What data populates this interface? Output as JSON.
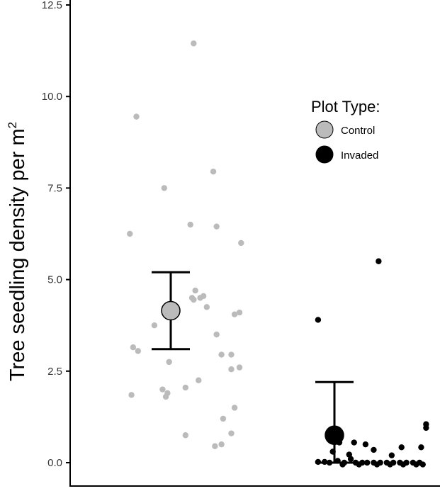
{
  "chart_data": {
    "type": "scatter",
    "ylabel": "Tree seedling density per m",
    "ylabel_sup": "2",
    "ylim": [
      0,
      12.5
    ],
    "yticks": [
      "0.0",
      "2.5",
      "5.0",
      "7.5",
      "10.0",
      "12.5"
    ],
    "grid": false,
    "legend": {
      "title": "Plot Type:",
      "placement": "top-right",
      "entries": [
        {
          "label": "Control",
          "color": "#bbbbbb"
        },
        {
          "label": "Invaded",
          "color": "#000000"
        }
      ]
    },
    "series": [
      {
        "name": "Control",
        "color": "#bbbbbb",
        "mean": 4.15,
        "error_low": 3.1,
        "error_high": 5.2,
        "points": [
          {
            "x": 1.14,
            "y": 11.45
          },
          {
            "x": 0.79,
            "y": 9.45
          },
          {
            "x": 1.26,
            "y": 7.95
          },
          {
            "x": 0.96,
            "y": 7.5
          },
          {
            "x": 0.75,
            "y": 6.25
          },
          {
            "x": 1.12,
            "y": 6.5
          },
          {
            "x": 1.28,
            "y": 6.45
          },
          {
            "x": 1.43,
            "y": 6.0
          },
          {
            "x": 1.15,
            "y": 4.7
          },
          {
            "x": 1.2,
            "y": 4.55
          },
          {
            "x": 1.13,
            "y": 4.5
          },
          {
            "x": 1.18,
            "y": 4.5
          },
          {
            "x": 1.14,
            "y": 4.45
          },
          {
            "x": 1.22,
            "y": 4.25
          },
          {
            "x": 1.39,
            "y": 4.05
          },
          {
            "x": 1.42,
            "y": 4.1
          },
          {
            "x": 0.9,
            "y": 3.75
          },
          {
            "x": 1.28,
            "y": 3.5
          },
          {
            "x": 0.77,
            "y": 3.15
          },
          {
            "x": 0.8,
            "y": 3.05
          },
          {
            "x": 1.31,
            "y": 2.95
          },
          {
            "x": 1.37,
            "y": 2.95
          },
          {
            "x": 0.99,
            "y": 2.75
          },
          {
            "x": 1.42,
            "y": 2.6
          },
          {
            "x": 1.37,
            "y": 2.55
          },
          {
            "x": 1.17,
            "y": 2.25
          },
          {
            "x": 1.09,
            "y": 2.05
          },
          {
            "x": 0.95,
            "y": 2.0
          },
          {
            "x": 0.98,
            "y": 1.9
          },
          {
            "x": 0.76,
            "y": 1.85
          },
          {
            "x": 0.97,
            "y": 1.8
          },
          {
            "x": 1.39,
            "y": 1.5
          },
          {
            "x": 1.32,
            "y": 1.2
          },
          {
            "x": 1.37,
            "y": 0.8
          },
          {
            "x": 1.09,
            "y": 0.75
          },
          {
            "x": 1.31,
            "y": 0.5
          },
          {
            "x": 1.27,
            "y": 0.45
          }
        ]
      },
      {
        "name": "Invaded",
        "color": "#000000",
        "mean": 0.75,
        "error_low": 0.0,
        "error_high": 2.2,
        "points": [
          {
            "x": 2.27,
            "y": 5.5
          },
          {
            "x": 1.9,
            "y": 3.9
          },
          {
            "x": 2.56,
            "y": 1.05
          },
          {
            "x": 2.56,
            "y": 0.95
          },
          {
            "x": 2.02,
            "y": 0.7
          },
          {
            "x": 2.01,
            "y": 0.6
          },
          {
            "x": 2.03,
            "y": 0.55
          },
          {
            "x": 2.12,
            "y": 0.55
          },
          {
            "x": 2.19,
            "y": 0.5
          },
          {
            "x": 2.41,
            "y": 0.42
          },
          {
            "x": 2.53,
            "y": 0.42
          },
          {
            "x": 2.24,
            "y": 0.35
          },
          {
            "x": 1.99,
            "y": 0.3
          },
          {
            "x": 2.09,
            "y": 0.22
          },
          {
            "x": 2.35,
            "y": 0.2
          },
          {
            "x": 2.1,
            "y": 0.1
          },
          {
            "x": 2.02,
            "y": 0.05
          },
          {
            "x": 1.9,
            "y": 0.02
          },
          {
            "x": 1.94,
            "y": 0.02
          },
          {
            "x": 1.97,
            "y": 0.0
          },
          {
            "x": 2.06,
            "y": 0.0
          },
          {
            "x": 2.13,
            "y": 0.0
          },
          {
            "x": 2.17,
            "y": 0.0
          },
          {
            "x": 2.2,
            "y": 0.0
          },
          {
            "x": 2.24,
            "y": 0.0
          },
          {
            "x": 2.28,
            "y": 0.0
          },
          {
            "x": 2.32,
            "y": 0.0
          },
          {
            "x": 2.36,
            "y": 0.0
          },
          {
            "x": 2.4,
            "y": 0.0
          },
          {
            "x": 2.44,
            "y": 0.0
          },
          {
            "x": 2.48,
            "y": 0.0
          },
          {
            "x": 2.52,
            "y": 0.0
          },
          {
            "x": 2.05,
            "y": -0.05
          },
          {
            "x": 2.15,
            "y": -0.05
          },
          {
            "x": 2.26,
            "y": -0.05
          },
          {
            "x": 2.34,
            "y": -0.05
          },
          {
            "x": 2.42,
            "y": -0.05
          },
          {
            "x": 2.5,
            "y": -0.05
          },
          {
            "x": 2.54,
            "y": -0.05
          }
        ]
      }
    ]
  }
}
